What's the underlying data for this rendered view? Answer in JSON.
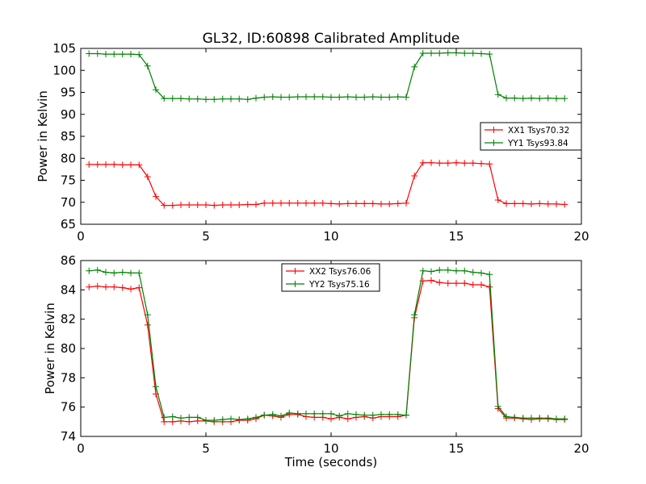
{
  "figure": {
    "title": "GL32, ID:60898 Calibrated Amplitude",
    "xlabel": "Time (seconds)"
  },
  "chart_data": [
    {
      "type": "line",
      "title": "GL32, ID:60898 Calibrated Amplitude",
      "xlabel": "",
      "ylabel": "Power in Kelvin",
      "xlim": [
        0,
        20
      ],
      "ylim": [
        65,
        105
      ],
      "xticks": [
        0,
        5,
        10,
        15,
        20
      ],
      "yticks": [
        65,
        70,
        75,
        80,
        85,
        90,
        95,
        100,
        105
      ],
      "grid": false,
      "legend": "center-right",
      "x": [
        0.33,
        0.67,
        1.0,
        1.33,
        1.67,
        2.0,
        2.33,
        2.67,
        3.0,
        3.33,
        3.67,
        4.0,
        4.33,
        4.67,
        5.0,
        5.33,
        5.67,
        6.0,
        6.33,
        6.67,
        7.0,
        7.33,
        7.67,
        8.0,
        8.33,
        8.67,
        9.0,
        9.33,
        9.67,
        10.0,
        10.33,
        10.67,
        11.0,
        11.33,
        11.67,
        12.0,
        12.33,
        12.67,
        13.0,
        13.33,
        13.67,
        14.0,
        14.33,
        14.67,
        15.0,
        15.33,
        15.67,
        16.0,
        16.33,
        16.67,
        17.0,
        17.33,
        17.67,
        18.0,
        18.33,
        18.67,
        19.0,
        19.33
      ],
      "series": [
        {
          "name": "XX1 Tsys70.32",
          "color": "#ff0000",
          "values": [
            78.6,
            78.6,
            78.6,
            78.6,
            78.5,
            78.5,
            78.5,
            75.8,
            71.3,
            69.3,
            69.3,
            69.4,
            69.4,
            69.4,
            69.4,
            69.3,
            69.4,
            69.4,
            69.4,
            69.5,
            69.5,
            69.8,
            69.8,
            69.8,
            69.8,
            69.8,
            69.8,
            69.8,
            69.8,
            69.7,
            69.6,
            69.7,
            69.7,
            69.7,
            69.7,
            69.6,
            69.6,
            69.7,
            69.8,
            76.0,
            79.0,
            79.0,
            78.9,
            78.9,
            79.0,
            78.9,
            78.9,
            78.8,
            78.7,
            70.5,
            69.7,
            69.7,
            69.7,
            69.6,
            69.7,
            69.6,
            69.6,
            69.5
          ]
        },
        {
          "name": "YY1 Tsys93.84",
          "color": "#008000",
          "values": [
            103.8,
            103.8,
            103.7,
            103.7,
            103.7,
            103.7,
            103.6,
            101.0,
            95.6,
            93.6,
            93.6,
            93.6,
            93.5,
            93.5,
            93.4,
            93.4,
            93.5,
            93.5,
            93.5,
            93.4,
            93.7,
            93.9,
            94.0,
            93.9,
            93.9,
            94.0,
            94.0,
            94.0,
            94.0,
            93.9,
            93.9,
            94.0,
            93.9,
            93.9,
            94.0,
            93.9,
            93.9,
            94.0,
            93.9,
            100.8,
            103.9,
            103.9,
            103.9,
            104.0,
            104.0,
            103.9,
            103.9,
            103.8,
            103.7,
            94.5,
            93.7,
            93.7,
            93.6,
            93.7,
            93.6,
            93.7,
            93.6,
            93.6
          ]
        }
      ]
    },
    {
      "type": "line",
      "title": "",
      "xlabel": "Time (seconds)",
      "ylabel": "Power in Kelvin",
      "xlim": [
        0,
        20
      ],
      "ylim": [
        74,
        86
      ],
      "xticks": [
        0,
        5,
        10,
        15,
        20
      ],
      "yticks": [
        74,
        76,
        78,
        80,
        82,
        84,
        86
      ],
      "grid": false,
      "legend": "top-center",
      "x": [
        0.33,
        0.67,
        1.0,
        1.33,
        1.67,
        2.0,
        2.33,
        2.67,
        3.0,
        3.33,
        3.67,
        4.0,
        4.33,
        4.67,
        5.0,
        5.33,
        5.67,
        6.0,
        6.33,
        6.67,
        7.0,
        7.33,
        7.67,
        8.0,
        8.33,
        8.67,
        9.0,
        9.33,
        9.67,
        10.0,
        10.33,
        10.67,
        11.0,
        11.33,
        11.67,
        12.0,
        12.33,
        12.67,
        13.0,
        13.33,
        13.67,
        14.0,
        14.33,
        14.67,
        15.0,
        15.33,
        15.67,
        16.0,
        16.33,
        16.67,
        17.0,
        17.33,
        17.67,
        18.0,
        18.33,
        18.67,
        19.0,
        19.33
      ],
      "series": [
        {
          "name": "XX2 Tsys76.06",
          "color": "#ff0000",
          "values": [
            84.2,
            84.25,
            84.2,
            84.2,
            84.15,
            84.05,
            84.15,
            81.6,
            76.9,
            75.0,
            75.0,
            75.05,
            75.0,
            75.05,
            75.05,
            75.0,
            75.0,
            75.0,
            75.1,
            75.1,
            75.2,
            75.45,
            75.4,
            75.3,
            75.5,
            75.5,
            75.35,
            75.3,
            75.3,
            75.2,
            75.3,
            75.2,
            75.3,
            75.35,
            75.25,
            75.35,
            75.35,
            75.35,
            75.45,
            82.1,
            84.6,
            84.65,
            84.5,
            84.45,
            84.45,
            84.45,
            84.35,
            84.35,
            84.2,
            75.9,
            75.25,
            75.25,
            75.2,
            75.15,
            75.2,
            75.2,
            75.15,
            75.15
          ]
        },
        {
          "name": "YY2 Tsys75.16",
          "color": "#008000",
          "values": [
            85.3,
            85.35,
            85.2,
            85.15,
            85.2,
            85.15,
            85.15,
            82.3,
            77.4,
            75.3,
            75.35,
            75.25,
            75.3,
            75.3,
            75.1,
            75.1,
            75.15,
            75.2,
            75.15,
            75.2,
            75.3,
            75.45,
            75.5,
            75.4,
            75.6,
            75.55,
            75.55,
            75.55,
            75.55,
            75.55,
            75.4,
            75.55,
            75.5,
            75.45,
            75.45,
            75.5,
            75.5,
            75.5,
            75.45,
            82.3,
            85.3,
            85.25,
            85.35,
            85.35,
            85.3,
            85.3,
            85.2,
            85.15,
            85.05,
            76.05,
            75.35,
            75.3,
            75.25,
            75.25,
            75.25,
            75.25,
            75.2,
            75.2
          ]
        }
      ]
    }
  ]
}
